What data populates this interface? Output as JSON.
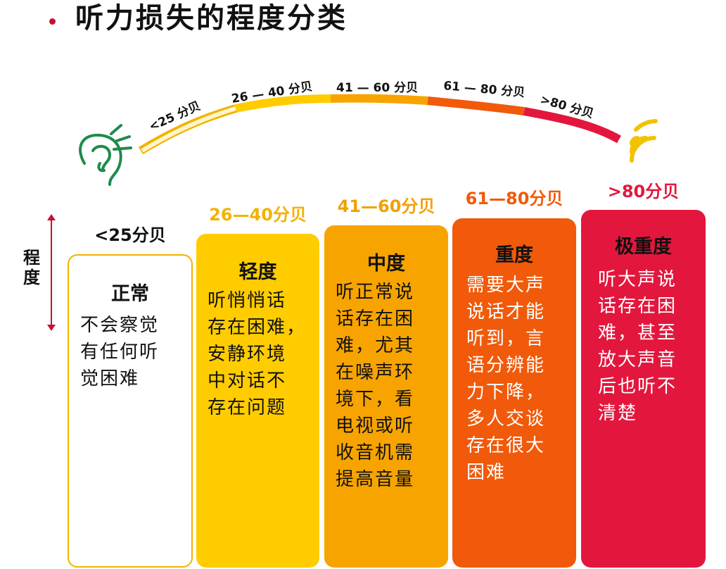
{
  "title": "听力损失的程度分类",
  "axis_label": "程度",
  "arc_labels": [
    "<25 分贝",
    "26 — 40 分贝",
    "41 — 60 分贝",
    "61 — 80 分贝",
    ">80 分贝"
  ],
  "levels": [
    {
      "range": "<25分贝",
      "name": "正常",
      "lines": [
        "不会察觉",
        "有任何听",
        "觉困难"
      ],
      "color": "#ffffff"
    },
    {
      "range": "26—40分贝",
      "name": "轻度",
      "lines": [
        "听悄悄话",
        "存在困难，",
        "安静环境",
        "中对话不",
        "存在问题"
      ],
      "color": "#ffcc00"
    },
    {
      "range": "41—60分贝",
      "name": "中度",
      "lines": [
        "听正常说",
        "话存在困",
        "难，尤其",
        "在噪声环",
        "境下，看",
        "电视或听",
        "收音机需",
        "提高音量"
      ],
      "color": "#f7a400"
    },
    {
      "range": "61—80分贝",
      "name": "重度",
      "lines": [
        "需要大声",
        "说话才能",
        "听到，言",
        "语分辨能",
        "力下降，",
        "多人交谈",
        "存在很大",
        "困难"
      ],
      "color": "#f05a0a"
    },
    {
      "range": ">80分贝",
      "name": "极重度",
      "lines": [
        "听大声说",
        "话存在困",
        "难，甚至",
        "放大声音",
        "后也听不",
        "清楚"
      ],
      "color": "#e3173e"
    }
  ],
  "icons": [
    "ear-icon",
    "sound-waves-icon"
  ]
}
